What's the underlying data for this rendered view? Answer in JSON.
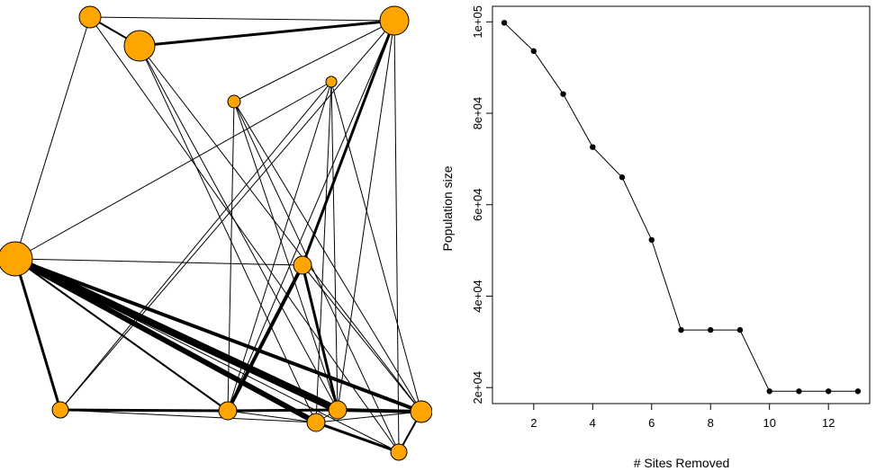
{
  "network": {
    "node_color": "#FFA500",
    "edge_color": "#000000",
    "nodes": [
      "n1",
      "n2",
      "n3",
      "n4",
      "n5",
      "n6",
      "n7",
      "n8",
      "n9",
      "n10",
      "n11",
      "n12",
      "n13"
    ],
    "edges": [
      [
        "n1",
        "n3"
      ],
      [
        "n1",
        "n2"
      ],
      [
        "n1",
        "n4"
      ],
      [
        "n1",
        "n13"
      ],
      [
        "n2",
        "n3"
      ],
      [
        "n2",
        "n10"
      ],
      [
        "n2",
        "n11"
      ],
      [
        "n2",
        "n12"
      ],
      [
        "n3",
        "n13"
      ],
      [
        "n3",
        "n8"
      ],
      [
        "n3",
        "n10"
      ],
      [
        "n3",
        "n9"
      ],
      [
        "n3",
        "n5"
      ],
      [
        "n4",
        "n10"
      ],
      [
        "n4",
        "n13"
      ],
      [
        "n4",
        "n12"
      ],
      [
        "n4",
        "n11"
      ],
      [
        "n4",
        "n9"
      ],
      [
        "n4",
        "n7"
      ],
      [
        "n4",
        "n6"
      ],
      [
        "n5",
        "n10"
      ],
      [
        "n5",
        "n12"
      ],
      [
        "n5",
        "n13"
      ],
      [
        "n6",
        "n8"
      ],
      [
        "n6",
        "n11"
      ],
      [
        "n6",
        "n10"
      ],
      [
        "n6",
        "n12"
      ],
      [
        "n7",
        "n10"
      ],
      [
        "n7",
        "n12"
      ],
      [
        "n8",
        "n10"
      ],
      [
        "n8",
        "n11"
      ],
      [
        "n9",
        "n11"
      ],
      [
        "n10",
        "n12"
      ],
      [
        "n10",
        "n11"
      ],
      [
        "n11",
        "n13"
      ],
      [
        "n12",
        "n13"
      ],
      [
        "n12",
        "n11"
      ]
    ]
  },
  "chart_data": {
    "type": "line",
    "title": "",
    "xlabel": "# Sites Removed",
    "ylabel": "Population size",
    "x": [
      1,
      2,
      3,
      4,
      5,
      6,
      7,
      8,
      9,
      10,
      11,
      12,
      13
    ],
    "values": [
      99800,
      93600,
      84200,
      72600,
      66000,
      52300,
      32600,
      32600,
      32600,
      19200,
      19200,
      19200,
      19200
    ],
    "xlim": [
      0.6,
      13.4
    ],
    "ylim": [
      16500,
      103400
    ],
    "xticks": [
      2,
      4,
      6,
      8,
      10,
      12
    ],
    "xtick_labels": [
      "2",
      "4",
      "6",
      "8",
      "10",
      "12"
    ],
    "yticks": [
      20000,
      40000,
      60000,
      80000,
      100000
    ],
    "ytick_labels": [
      "2e+04",
      "4e+04",
      "6e+04",
      "8e+04",
      "1e+05"
    ],
    "marker": "filled-circle",
    "line_color": "#000000"
  }
}
